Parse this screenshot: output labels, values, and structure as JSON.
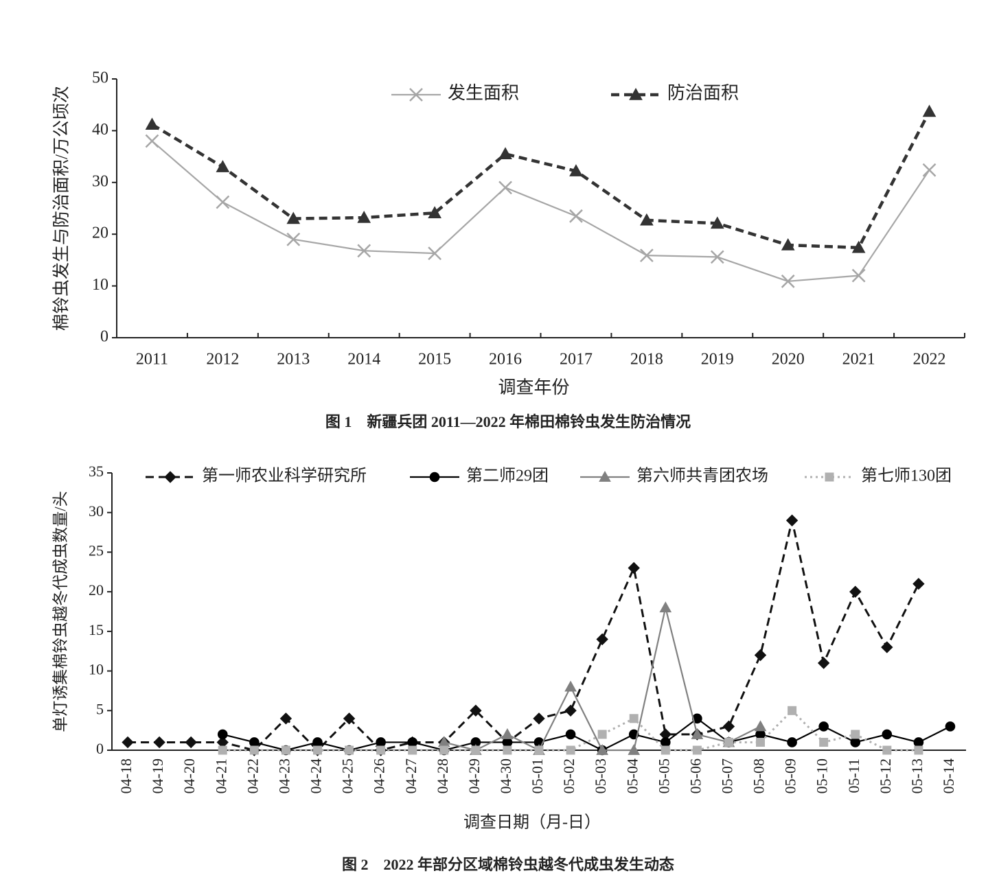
{
  "chart_data": [
    {
      "type": "line",
      "x_label": "调查年份",
      "y_label": "棉铃虫发生与防治面积/万公顷次",
      "caption": "图 1　新疆兵团 2011—2022 年棉田棉铃虫发生防治情况",
      "categories": [
        "2011",
        "2012",
        "2013",
        "2014",
        "2015",
        "2016",
        "2017",
        "2018",
        "2019",
        "2020",
        "2021",
        "2022"
      ],
      "series": [
        {
          "name": "发生面积",
          "color": "#a6a6a6",
          "marker": "x",
          "dash": "solid",
          "values": [
            38,
            26.2,
            19,
            16.8,
            16.3,
            29,
            23.5,
            15.9,
            15.6,
            10.9,
            12,
            32.4
          ]
        },
        {
          "name": "防治面积",
          "color": "#333333",
          "marker": "triangle",
          "dash": "dashed",
          "values": [
            41.2,
            33,
            23,
            23.2,
            24.1,
            35.5,
            32.2,
            22.7,
            22.1,
            17.9,
            17.4,
            43.7
          ]
        }
      ],
      "ylim": [
        0,
        50
      ],
      "yticks": [
        0,
        10,
        20,
        30,
        40,
        50
      ]
    },
    {
      "type": "line",
      "x_label": "调查日期（月-日）",
      "y_label": "单灯诱集棉铃虫越冬代成虫数量/头",
      "caption": "图 2　2022 年部分区域棉铃虫越冬代成虫发生动态",
      "categories": [
        "04-18",
        "04-19",
        "04-20",
        "04-21",
        "04-22",
        "04-23",
        "04-24",
        "04-25",
        "04-26",
        "04-27",
        "04-28",
        "04-29",
        "04-30",
        "05-01",
        "05-02",
        "05-03",
        "05-04",
        "05-05",
        "05-06",
        "05-07",
        "05-08",
        "05-09",
        "05-10",
        "05-11",
        "05-12",
        "05-13",
        "05-14"
      ],
      "series": [
        {
          "name": "第一师农业科学研究所",
          "color": "#111111",
          "marker": "diamond",
          "dash": "dashed",
          "values": [
            1,
            1,
            1,
            1,
            0,
            4,
            0,
            4,
            0,
            1,
            1,
            5,
            1,
            4,
            5,
            14,
            23,
            2,
            2,
            3,
            12,
            29,
            11,
            20,
            13,
            21,
            null
          ]
        },
        {
          "name": "第二师29团",
          "color": "#000000",
          "marker": "circle",
          "dash": "solid",
          "values": [
            null,
            null,
            null,
            2,
            1,
            0,
            1,
            0,
            1,
            1,
            0,
            1,
            1,
            1,
            2,
            0,
            2,
            1,
            4,
            1,
            2,
            1,
            3,
            1,
            2,
            1,
            3
          ]
        },
        {
          "name": "第六师共青团农场",
          "color": "#808080",
          "marker": "triangle",
          "dash": "solid",
          "values": [
            null,
            null,
            null,
            null,
            null,
            null,
            null,
            null,
            null,
            null,
            1,
            0,
            2,
            0,
            8,
            0,
            0,
            18,
            2,
            1,
            3,
            null,
            null,
            null,
            null,
            null,
            null
          ]
        },
        {
          "name": "第七师130团",
          "color": "#b0b0b0",
          "marker": "square",
          "dash": "dotted",
          "values": [
            null,
            null,
            null,
            0,
            0,
            0,
            0,
            0,
            0,
            0,
            0,
            0,
            0,
            0,
            0,
            2,
            4,
            0,
            0,
            1,
            1,
            5,
            1,
            2,
            0,
            0,
            null
          ]
        }
      ],
      "ylim": [
        0,
        35
      ],
      "yticks": [
        0,
        5,
        10,
        15,
        20,
        25,
        30,
        35
      ]
    }
  ]
}
